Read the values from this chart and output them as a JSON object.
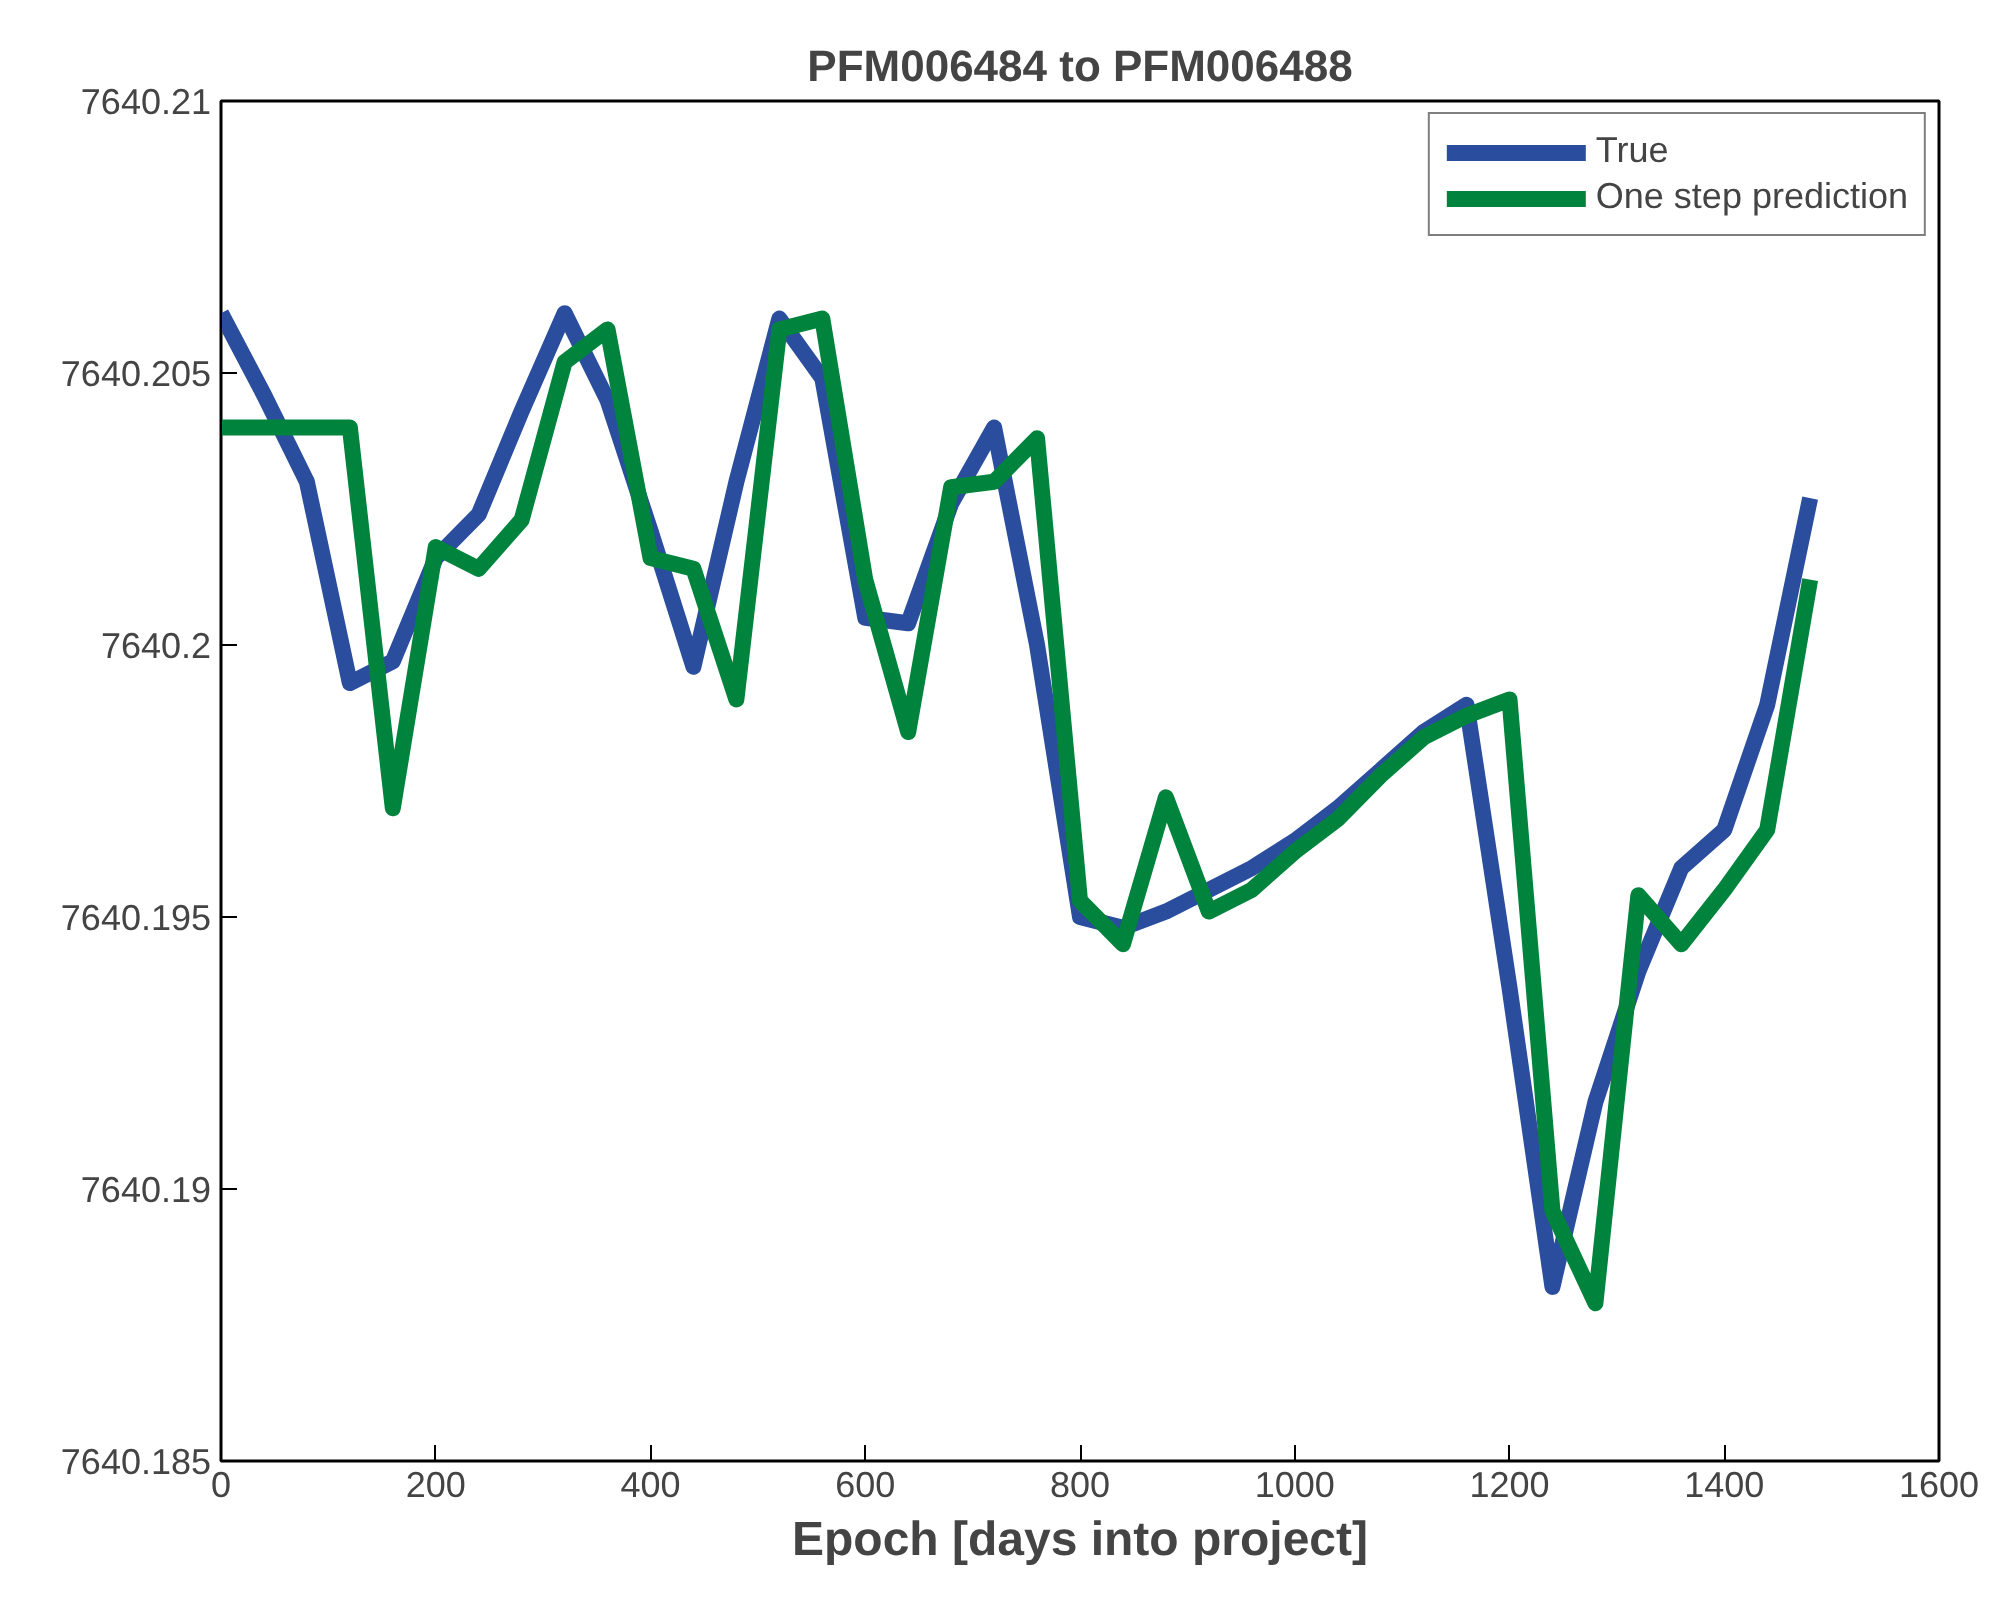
{
  "chart_data": {
    "type": "line",
    "title": "PFM006484 to PFM006488",
    "xlabel": "Epoch [days into project]",
    "x": [
      0,
      40,
      80,
      120,
      160,
      200,
      240,
      280,
      320,
      360,
      400,
      440,
      480,
      520,
      560,
      600,
      640,
      680,
      720,
      760,
      800,
      840,
      880,
      920,
      960,
      1000,
      1040,
      1080,
      1120,
      1160,
      1200,
      1240,
      1280,
      1320,
      1360,
      1400,
      1440,
      1480
    ],
    "series": [
      {
        "name": "True",
        "color": "#2a4d9e",
        "values": [
          7640.2061,
          7640.2046,
          7640.203,
          7640.1993,
          7640.1997,
          7640.2016,
          7640.2024,
          7640.2043,
          7640.2061,
          7640.2045,
          7640.2021,
          7640.1996,
          7640.203,
          7640.206,
          7640.2049,
          7640.2005,
          7640.2004,
          7640.2026,
          7640.204,
          7640.2,
          7640.195,
          7640.1948,
          7640.1951,
          7640.1955,
          7640.1959,
          7640.1964,
          7640.197,
          7640.1977,
          7640.1984,
          7640.1989,
          7640.1937,
          7640.1882,
          7640.1916,
          7640.194,
          7640.1959,
          7640.1966,
          7640.1989,
          7640.2027
        ]
      },
      {
        "name": "One step prediction",
        "color": "#00843d",
        "values": [
          7640.204,
          7640.204,
          7640.204,
          7640.204,
          7640.197,
          7640.2018,
          7640.2014,
          7640.2023,
          7640.2052,
          7640.2058,
          7640.2016,
          7640.2014,
          7640.199,
          7640.2058,
          7640.206,
          7640.2012,
          7640.1984,
          7640.2029,
          7640.203,
          7640.2038,
          7640.1953,
          7640.1945,
          7640.1972,
          7640.1951,
          7640.1955,
          7640.1962,
          7640.1968,
          7640.1976,
          7640.1983,
          7640.1987,
          7640.199,
          7640.1896,
          7640.1879,
          7640.1954,
          7640.1945,
          7640.1955,
          7640.1966,
          7640.2012
        ]
      }
    ],
    "xlim": [
      0,
      1600
    ],
    "xticks": [
      0,
      200,
      400,
      600,
      800,
      1000,
      1200,
      1400,
      1600
    ],
    "ylim": [
      7640.185,
      7640.21
    ],
    "yticks": [
      7640.185,
      7640.19,
      7640.195,
      7640.2,
      7640.205,
      7640.21
    ],
    "legend": "top right",
    "marker": "none",
    "line_style": "solid"
  }
}
